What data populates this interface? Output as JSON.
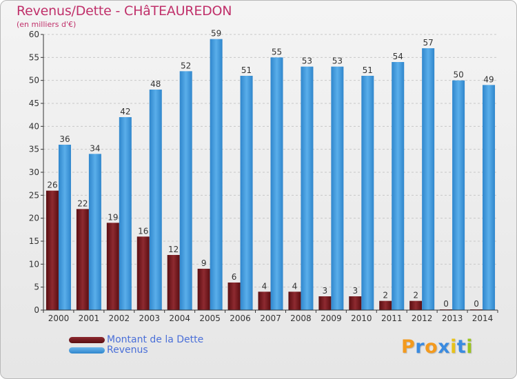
{
  "header": {
    "title": "Revenus/Dette - CHâTEAUREDON",
    "subtitle": "(en milliers d'€)"
  },
  "colors": {
    "title": "#c0306a",
    "dette": "#7a1a1f",
    "revenus": "#3e9be0",
    "legend_text": "#4a6fd8",
    "axis": "#333333"
  },
  "legend": {
    "items": [
      {
        "label": "Montant de la Dette",
        "color": "#7a1a1f"
      },
      {
        "label": "Revenus",
        "color": "#3e9be0"
      }
    ]
  },
  "logo": {
    "text": "Proxiti",
    "letters": [
      {
        "char": "P",
        "color": "#f39a1e"
      },
      {
        "char": "r",
        "color": "#3a8be0"
      },
      {
        "char": "o",
        "color": "#f39a1e"
      },
      {
        "char": "x",
        "color": "#3a8be0"
      },
      {
        "char": "i",
        "color": "#e8c21a"
      },
      {
        "char": "t",
        "color": "#3a8be0"
      },
      {
        "char": "i",
        "color": "#9bc41e"
      }
    ]
  },
  "chart_data": {
    "type": "bar",
    "title": "Revenus/Dette - CHâTEAUREDON",
    "subtitle": "(en milliers d'€)",
    "categories": [
      "2000",
      "2001",
      "2002",
      "2003",
      "2004",
      "2005",
      "2006",
      "2007",
      "2008",
      "2009",
      "2010",
      "2011",
      "2012",
      "2013",
      "2014"
    ],
    "series": [
      {
        "name": "Montant de la Dette",
        "color": "#7a1a1f",
        "values": [
          26,
          22,
          19,
          16,
          12,
          9,
          6,
          4,
          4,
          3,
          3,
          2,
          2,
          0,
          0
        ]
      },
      {
        "name": "Revenus",
        "color": "#3e9be0",
        "values": [
          36,
          34,
          42,
          48,
          52,
          59,
          51,
          55,
          53,
          53,
          51,
          54,
          57,
          50,
          49
        ]
      }
    ],
    "ylim": [
      0,
      60
    ],
    "yticks": [
      0,
      5,
      10,
      15,
      20,
      25,
      30,
      35,
      40,
      45,
      50,
      55,
      60
    ],
    "grid": "horizontal",
    "legend_position": "bottom-left",
    "data_labels": true
  }
}
